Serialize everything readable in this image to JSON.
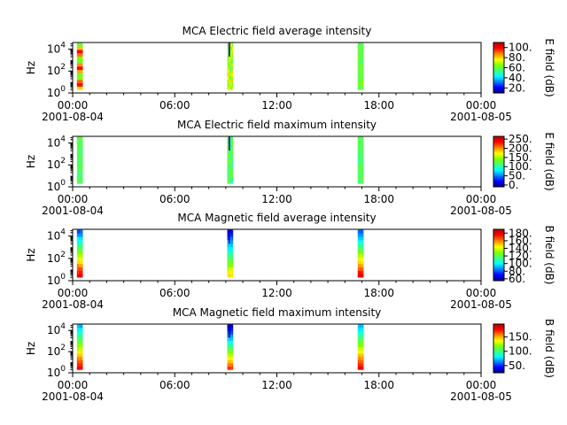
{
  "figure": {
    "x_tick_labels": [
      "00:00",
      "06:00",
      "12:00",
      "18:00",
      "00:00"
    ],
    "x_start_date": "2001-08-04",
    "x_end_date": "2001-08-05"
  },
  "colors": {
    "colormap": [
      "#00008f",
      "#0000ff",
      "#0080ff",
      "#00ffff",
      "#40ff80",
      "#80ff00",
      "#ffff00",
      "#ff8000",
      "#ff0000",
      "#b00000"
    ]
  },
  "chart_data": [
    {
      "type": "heatmap",
      "title": "MCA  Electric field average intensity",
      "ylabel": "Hz",
      "y_scale": "log",
      "yticks": [
        "10^0",
        "10^2",
        "10^4"
      ],
      "xlim": [
        "2001-08-04 00:00",
        "2001-08-05 00:00"
      ],
      "colorbar": {
        "label": "E field (dB)",
        "ticks": [
          "20.",
          "40.",
          "60.",
          "80.",
          "100."
        ],
        "range": [
          10,
          110
        ]
      },
      "passes": [
        {
          "start": "00:15",
          "end": "00:35",
          "dominant_level": 85,
          "range_levels": [
            60,
            100
          ]
        },
        {
          "start": "09:05",
          "end": "09:25",
          "dominant_level": 70,
          "range_levels": [
            20,
            90
          ]
        },
        {
          "start": "16:45",
          "end": "17:05",
          "dominant_level": 60,
          "range_levels": [
            40,
            85
          ]
        }
      ]
    },
    {
      "type": "heatmap",
      "title": "MCA  Electric field maximum intensity",
      "ylabel": "Hz",
      "y_scale": "log",
      "yticks": [
        "10^0",
        "10^2",
        "10^4"
      ],
      "xlim": [
        "2001-08-04 00:00",
        "2001-08-05 00:00"
      ],
      "colorbar": {
        "label": "E field (dB)",
        "ticks": [
          "0.",
          "50.",
          "100.",
          "150.",
          "200.",
          "250."
        ],
        "range": [
          -10,
          265
        ]
      },
      "passes": [
        {
          "start": "00:15",
          "end": "00:35",
          "dominant_level": 120,
          "range_levels": [
            60,
            150
          ]
        },
        {
          "start": "09:05",
          "end": "09:25",
          "dominant_level": 120,
          "range_levels": [
            0,
            160
          ]
        },
        {
          "start": "16:45",
          "end": "17:05",
          "dominant_level": 120,
          "range_levels": [
            50,
            150
          ]
        }
      ]
    },
    {
      "type": "heatmap",
      "title": "MCA  Magnetic field average intensity",
      "ylabel": "Hz",
      "y_scale": "log",
      "yticks": [
        "10^0",
        "10^2",
        "10^4"
      ],
      "xlim": [
        "2001-08-04 00:00",
        "2001-08-05 00:00"
      ],
      "colorbar": {
        "label": "B field (dB)",
        "ticks": [
          "60.",
          "80.",
          "100.",
          "120.",
          "140.",
          "160.",
          "180."
        ],
        "range": [
          55,
          190
        ]
      },
      "passes": [
        {
          "start": "00:15",
          "end": "00:35",
          "dominant_level": 120,
          "range_levels": [
            70,
            180
          ]
        },
        {
          "start": "09:05",
          "end": "09:25",
          "dominant_level": 120,
          "range_levels": [
            60,
            150
          ]
        },
        {
          "start": "16:45",
          "end": "17:05",
          "dominant_level": 120,
          "range_levels": [
            70,
            180
          ]
        }
      ]
    },
    {
      "type": "heatmap",
      "title": "MCA  Magnetic field maximum intensity",
      "ylabel": "Hz",
      "y_scale": "log",
      "yticks": [
        "10^0",
        "10^2",
        "10^4"
      ],
      "xlim": [
        "2001-08-04 00:00",
        "2001-08-05 00:00"
      ],
      "colorbar": {
        "label": "B field (dB)",
        "ticks": [
          "50.",
          "100.",
          "150."
        ],
        "range": [
          25,
          195
        ]
      },
      "passes": [
        {
          "start": "00:15",
          "end": "00:35",
          "dominant_level": 110,
          "range_levels": [
            60,
            180
          ]
        },
        {
          "start": "09:05",
          "end": "09:25",
          "dominant_level": 110,
          "range_levels": [
            20,
            170
          ]
        },
        {
          "start": "16:45",
          "end": "17:05",
          "dominant_level": 110,
          "range_levels": [
            60,
            180
          ]
        }
      ]
    }
  ]
}
